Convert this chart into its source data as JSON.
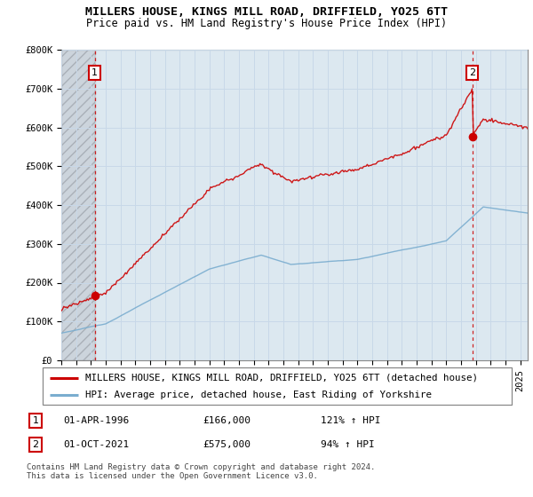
{
  "title": "MILLERS HOUSE, KINGS MILL ROAD, DRIFFIELD, YO25 6TT",
  "subtitle": "Price paid vs. HM Land Registry's House Price Index (HPI)",
  "ylim": [
    0,
    800000
  ],
  "yticks": [
    0,
    100000,
    200000,
    300000,
    400000,
    500000,
    600000,
    700000,
    800000
  ],
  "ytick_labels": [
    "£0",
    "£100K",
    "£200K",
    "£300K",
    "£400K",
    "£500K",
    "£600K",
    "£700K",
    "£800K"
  ],
  "sale1_t": 1996.25,
  "sale1_p": 166000,
  "sale2_t": 2021.75,
  "sale2_p": 575000,
  "red_line_color": "#cc0000",
  "blue_line_color": "#7aadcf",
  "annotation_box_color": "#cc0000",
  "grid_color": "#c8d8e8",
  "background_color": "#dce8f0",
  "legend_label_red": "MILLERS HOUSE, KINGS MILL ROAD, DRIFFIELD, YO25 6TT (detached house)",
  "legend_label_blue": "HPI: Average price, detached house, East Riding of Yorkshire",
  "footer": "Contains HM Land Registry data © Crown copyright and database right 2024.\nThis data is licensed under the Open Government Licence v3.0.",
  "title_fontsize": 9.5,
  "subtitle_fontsize": 8.5,
  "tick_fontsize": 7.5,
  "legend_fontsize": 7.8
}
